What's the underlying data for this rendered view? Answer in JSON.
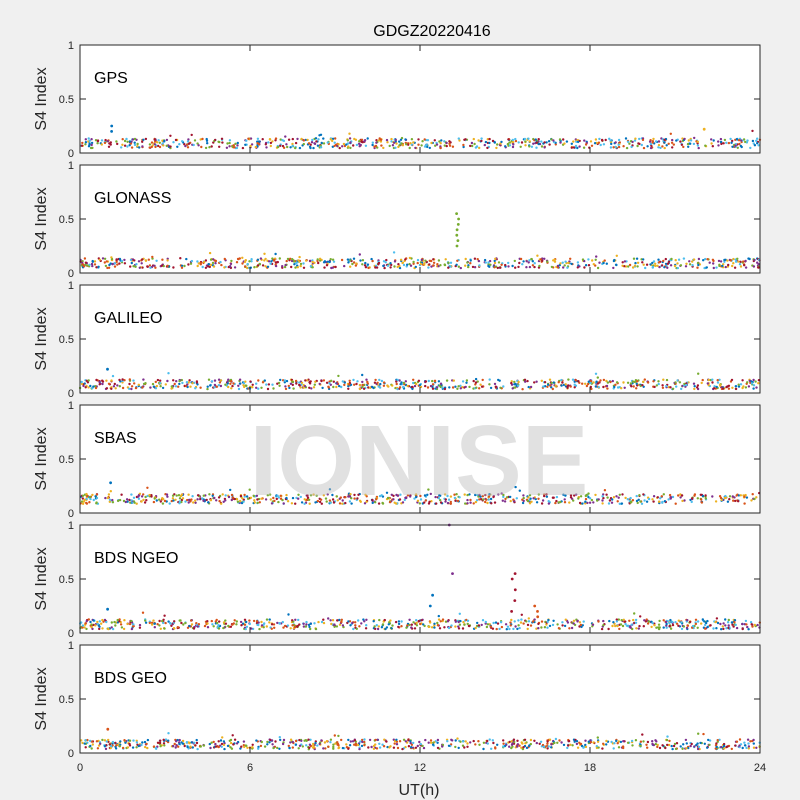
{
  "chart_data": {
    "type": "scatter",
    "title": "GDGZ20220416",
    "xlabel": "UT(h)",
    "ylabel": "S4 Index",
    "xlim": [
      0,
      24
    ],
    "ylim": [
      0,
      1
    ],
    "xticks": [
      "0",
      "6",
      "12",
      "18",
      "24"
    ],
    "yticks": [
      "0",
      "0.5",
      "1"
    ],
    "watermark": "IONISE",
    "colors": [
      "#0072BD",
      "#D95319",
      "#EDB120",
      "#7E2F8E",
      "#77AC30",
      "#4DBEEE",
      "#A2142F"
    ],
    "panels": [
      {
        "name": "GPS",
        "baseline": 0.09,
        "spikes": [
          {
            "x": 1.1,
            "ys": [
              0.2,
              0.25
            ],
            "c": 0
          },
          {
            "x": 22.1,
            "ys": [
              0.22
            ],
            "c": 2
          }
        ]
      },
      {
        "name": "GLONASS",
        "baseline": 0.09,
        "spikes": [
          {
            "x": 13.3,
            "ys": [
              0.25,
              0.3,
              0.35,
              0.4,
              0.45,
              0.5,
              0.55
            ],
            "c": 4
          }
        ]
      },
      {
        "name": "GALILEO",
        "baseline": 0.08,
        "spikes": [
          {
            "x": 1.0,
            "ys": [
              0.22
            ],
            "c": 0
          }
        ]
      },
      {
        "name": "SBAS",
        "baseline": 0.13,
        "spikes": [
          {
            "x": 1.1,
            "ys": [
              0.28
            ],
            "c": 0
          }
        ]
      },
      {
        "name": "BDS NGEO",
        "baseline": 0.08,
        "spikes": [
          {
            "x": 13.1,
            "ys": [
              0.55,
              1.0
            ],
            "c": 3
          },
          {
            "x": 12.4,
            "ys": [
              0.25,
              0.35
            ],
            "c": 0
          },
          {
            "x": 15.3,
            "ys": [
              0.2,
              0.3,
              0.4,
              0.5,
              0.55
            ],
            "c": 6
          },
          {
            "x": 16.1,
            "ys": [
              0.15,
              0.2,
              0.25
            ],
            "c": 1
          },
          {
            "x": 1.0,
            "ys": [
              0.22
            ],
            "c": 0
          }
        ]
      },
      {
        "name": "BDS GEO",
        "baseline": 0.08,
        "spikes": [
          {
            "x": 1.0,
            "ys": [
              0.22
            ],
            "c": 1
          }
        ]
      }
    ]
  }
}
